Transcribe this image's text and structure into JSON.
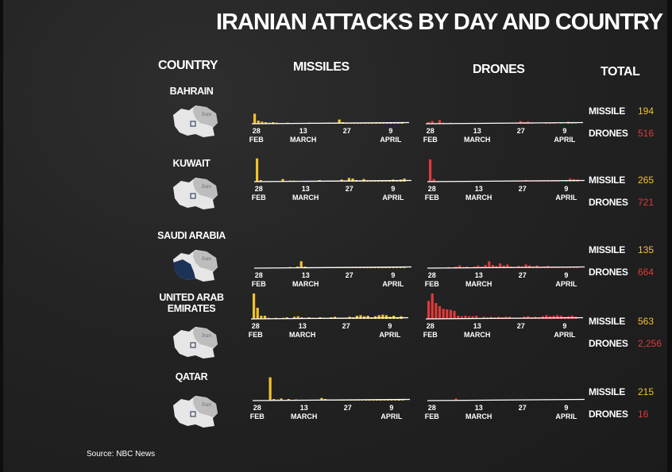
{
  "title": "IRANIAN ATTACKS BY DAY AND COUNTRY",
  "headers": {
    "country": "COUNTRY",
    "missiles": "MISSILES",
    "drones": "DRONES",
    "total": "TOTAL"
  },
  "axis_ticks": [
    {
      "day": "28",
      "month": "FEB"
    },
    {
      "day": "13",
      "month": "MARCH"
    },
    {
      "day": "27",
      "month": ""
    },
    {
      "day": "9",
      "month": "APRIL"
    }
  ],
  "map_label": "Iran",
  "total_labels": {
    "missile": "MISSILE",
    "drones": "DRONES"
  },
  "colors": {
    "missile": "#f2c12e",
    "drones": "#e03a3a",
    "highlight": "#1c3358",
    "map": "#e6e6e6",
    "iran": "#bdbdbd"
  },
  "icons": {
    "map": "gulf-map-icon",
    "marker": "country-marker-icon"
  },
  "countries": [
    {
      "name": "BAHRAIN",
      "missile_total": "194",
      "drone_total": "516",
      "highlight_fill": false
    },
    {
      "name": "KUWAIT",
      "missile_total": "265",
      "drone_total": "721",
      "highlight_fill": false
    },
    {
      "name": "SAUDI ARABIA",
      "missile_total": "135",
      "drone_total": "664",
      "highlight_fill": true
    },
    {
      "name": "UNITED ARAB\nEMIRATES",
      "missile_total": "563",
      "drone_total": "2,256",
      "highlight_fill": false
    },
    {
      "name": "QATAR",
      "missile_total": "215",
      "drone_total": "16",
      "highlight_fill": false
    }
  ],
  "chart_data": [
    {
      "type": "bar",
      "title": "BAHRAIN",
      "series": [
        {
          "name": "MISSILES",
          "values": [
            19,
            6,
            4,
            3,
            2,
            3,
            2,
            1,
            1,
            2,
            1,
            1,
            1,
            1,
            1,
            2,
            1,
            1,
            1,
            1,
            2,
            1,
            1,
            8,
            3,
            1,
            1,
            1,
            1,
            1,
            1,
            1,
            1,
            1,
            1,
            1,
            1,
            3,
            1,
            1,
            2
          ]
        },
        {
          "name": "DRONES",
          "values": [
            3,
            5,
            1,
            7,
            2,
            1,
            2,
            0,
            0,
            1,
            1,
            0,
            0,
            0,
            0,
            0,
            0,
            0,
            0,
            0,
            0,
            0,
            0,
            0,
            1,
            5,
            3,
            4,
            2,
            0,
            0,
            0,
            1,
            2,
            1,
            0,
            1,
            0,
            4,
            2,
            1
          ]
        }
      ]
    },
    {
      "type": "bar",
      "title": "KUWAIT",
      "series": [
        {
          "name": "MISSILES",
          "values": [
            44,
            3,
            1,
            1,
            1,
            1,
            1,
            5,
            1,
            2,
            2,
            1,
            1,
            1,
            1,
            1,
            1,
            3,
            1,
            1,
            1,
            1,
            1,
            4,
            1,
            7,
            6,
            3,
            1,
            5,
            1,
            1,
            1,
            1,
            1,
            1,
            2,
            4,
            2,
            4,
            6
          ]
        },
        {
          "name": "DRONES",
          "values": [
            42,
            5,
            1,
            1,
            1,
            1,
            1,
            1,
            1,
            1,
            1,
            1,
            1,
            1,
            1,
            1,
            1,
            1,
            1,
            1,
            1,
            1,
            1,
            1,
            1,
            1,
            3,
            1,
            1,
            1,
            1,
            1,
            1,
            1,
            2,
            1,
            1,
            3,
            6,
            5,
            4
          ]
        }
      ]
    },
    {
      "type": "bar",
      "title": "SAUDI ARABIA",
      "series": [
        {
          "name": "MISSILES",
          "values": [
            0,
            0,
            0,
            0,
            0,
            0,
            0,
            0,
            0,
            2,
            1,
            3,
            13,
            3,
            1,
            1,
            1,
            1,
            1,
            1,
            1,
            1,
            1,
            1,
            1,
            1,
            1,
            1,
            2,
            1,
            1,
            1,
            1,
            1,
            1,
            1,
            1,
            1,
            1,
            1,
            1
          ]
        },
        {
          "name": "DRONES",
          "values": [
            0,
            0,
            0,
            0,
            0,
            2,
            1,
            3,
            5,
            2,
            3,
            1,
            3,
            5,
            3,
            6,
            13,
            6,
            4,
            9,
            5,
            7,
            3,
            2,
            4,
            3,
            7,
            5,
            3,
            5,
            2,
            3,
            4,
            1,
            1,
            1,
            1,
            1,
            1,
            1,
            1
          ]
        }
      ]
    },
    {
      "type": "bar",
      "title": "UNITED ARAB EMIRATES",
      "series": [
        {
          "name": "MISSILES",
          "values": [
            48,
            21,
            6,
            6,
            2,
            1,
            2,
            1,
            2,
            3,
            1,
            4,
            5,
            3,
            2,
            3,
            2,
            1,
            3,
            2,
            1,
            3,
            4,
            1,
            1,
            2,
            4,
            3,
            6,
            7,
            5,
            6,
            3,
            5,
            7,
            8,
            7,
            4,
            6,
            3,
            5
          ]
        },
        {
          "name": "DRONES",
          "values": [
            34,
            48,
            30,
            24,
            19,
            18,
            17,
            15,
            6,
            5,
            6,
            5,
            5,
            6,
            2,
            4,
            3,
            4,
            3,
            4,
            3,
            4,
            4,
            1,
            1,
            2,
            4,
            5,
            3,
            4,
            3,
            5,
            7,
            5,
            6,
            7,
            6,
            4,
            5,
            6,
            4
          ]
        }
      ]
    },
    {
      "type": "bar",
      "title": "QATAR",
      "series": [
        {
          "name": "MISSILES",
          "values": [
            0,
            0,
            0,
            0,
            44,
            3,
            2,
            4,
            1,
            3,
            1,
            2,
            1,
            1,
            1,
            1,
            1,
            1,
            5,
            3,
            2,
            1,
            1,
            1,
            1,
            1,
            1,
            1,
            1,
            1,
            1,
            1,
            1,
            1,
            1,
            1,
            1,
            1,
            1,
            2,
            1
          ]
        },
        {
          "name": "DRONES",
          "values": [
            0,
            0,
            0,
            0,
            0,
            0,
            0,
            4,
            0,
            0,
            0,
            0,
            0,
            0,
            0,
            0,
            0,
            0,
            0,
            0,
            0,
            0,
            0,
            0,
            0,
            0,
            0,
            0,
            0,
            0,
            0,
            0,
            0,
            0,
            0,
            0,
            0,
            0,
            0,
            0,
            0
          ]
        }
      ]
    }
  ],
  "source": "Source: NBC News"
}
